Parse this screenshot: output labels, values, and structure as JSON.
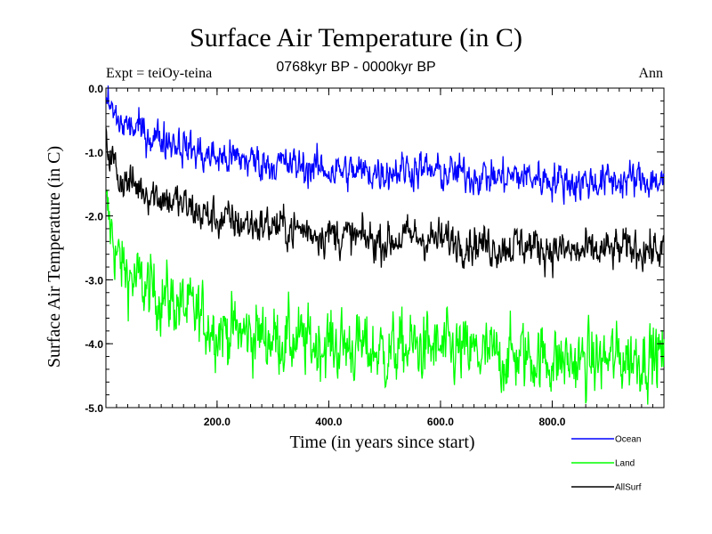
{
  "header": {
    "title": "Surface Air Temperature (in C)",
    "subtitle": "0768kyr BP - 0000kyr BP",
    "expt": "Expt = teiOy-teina",
    "season": "Ann"
  },
  "chart_data": {
    "type": "line",
    "title": "Surface Air Temperature (in C)",
    "subtitle": "0768kyr BP - 0000kyr BP",
    "xlabel": "Time (in years since start)",
    "ylabel": "Surface Air Temperature (in C)",
    "xlim": [
      1,
      1000
    ],
    "ylim": [
      -5.0,
      0.0
    ],
    "x_ticks": [
      200,
      400,
      600,
      800
    ],
    "x_tick_labels": [
      "200.0",
      "400.0",
      "600.0",
      "800.0"
    ],
    "y_ticks": [
      0.0,
      -1.0,
      -2.0,
      -3.0,
      -4.0,
      -5.0
    ],
    "y_tick_labels": [
      "0.0",
      "-1.0",
      "-2.0",
      "-3.0",
      "-4.0",
      "-5.0"
    ],
    "grid": false,
    "legend_position": "bottom-right",
    "series": [
      {
        "name": "Ocean",
        "color": "#0000ff",
        "x": [
          1,
          25,
          50,
          75,
          100,
          125,
          150,
          175,
          200,
          250,
          300,
          350,
          400,
          450,
          500,
          550,
          600,
          650,
          700,
          750,
          800,
          850,
          900,
          950,
          1000
        ],
        "values": [
          -0.2,
          -0.55,
          -0.62,
          -0.72,
          -0.78,
          -0.83,
          -0.95,
          -1.05,
          -1.08,
          -1.12,
          -1.18,
          -1.22,
          -1.28,
          -1.32,
          -1.3,
          -1.25,
          -1.33,
          -1.35,
          -1.4,
          -1.38,
          -1.42,
          -1.48,
          -1.45,
          -1.43,
          -1.45
        ]
      },
      {
        "name": "Land",
        "color": "#00ff00",
        "x": [
          1,
          25,
          50,
          75,
          100,
          125,
          150,
          175,
          200,
          250,
          300,
          350,
          400,
          450,
          500,
          550,
          600,
          650,
          700,
          750,
          800,
          850,
          900,
          950,
          1000
        ],
        "values": [
          -1.9,
          -2.75,
          -3.0,
          -3.15,
          -3.25,
          -3.35,
          -3.5,
          -3.62,
          -3.75,
          -3.85,
          -3.9,
          -3.98,
          -4.0,
          -4.05,
          -4.15,
          -4.05,
          -4.1,
          -4.15,
          -4.22,
          -4.18,
          -4.25,
          -4.3,
          -4.25,
          -4.2,
          -4.18
        ]
      },
      {
        "name": "AllSurf",
        "color": "#000000",
        "x": [
          1,
          25,
          50,
          75,
          100,
          125,
          150,
          175,
          200,
          250,
          300,
          350,
          400,
          450,
          500,
          550,
          600,
          650,
          700,
          750,
          800,
          850,
          900,
          950,
          1000
        ],
        "values": [
          -0.85,
          -1.4,
          -1.52,
          -1.6,
          -1.7,
          -1.78,
          -1.88,
          -1.98,
          -2.05,
          -2.12,
          -2.15,
          -2.22,
          -2.28,
          -2.35,
          -2.4,
          -2.32,
          -2.38,
          -2.4,
          -2.48,
          -2.45,
          -2.52,
          -2.58,
          -2.55,
          -2.5,
          -2.55
        ]
      }
    ]
  }
}
